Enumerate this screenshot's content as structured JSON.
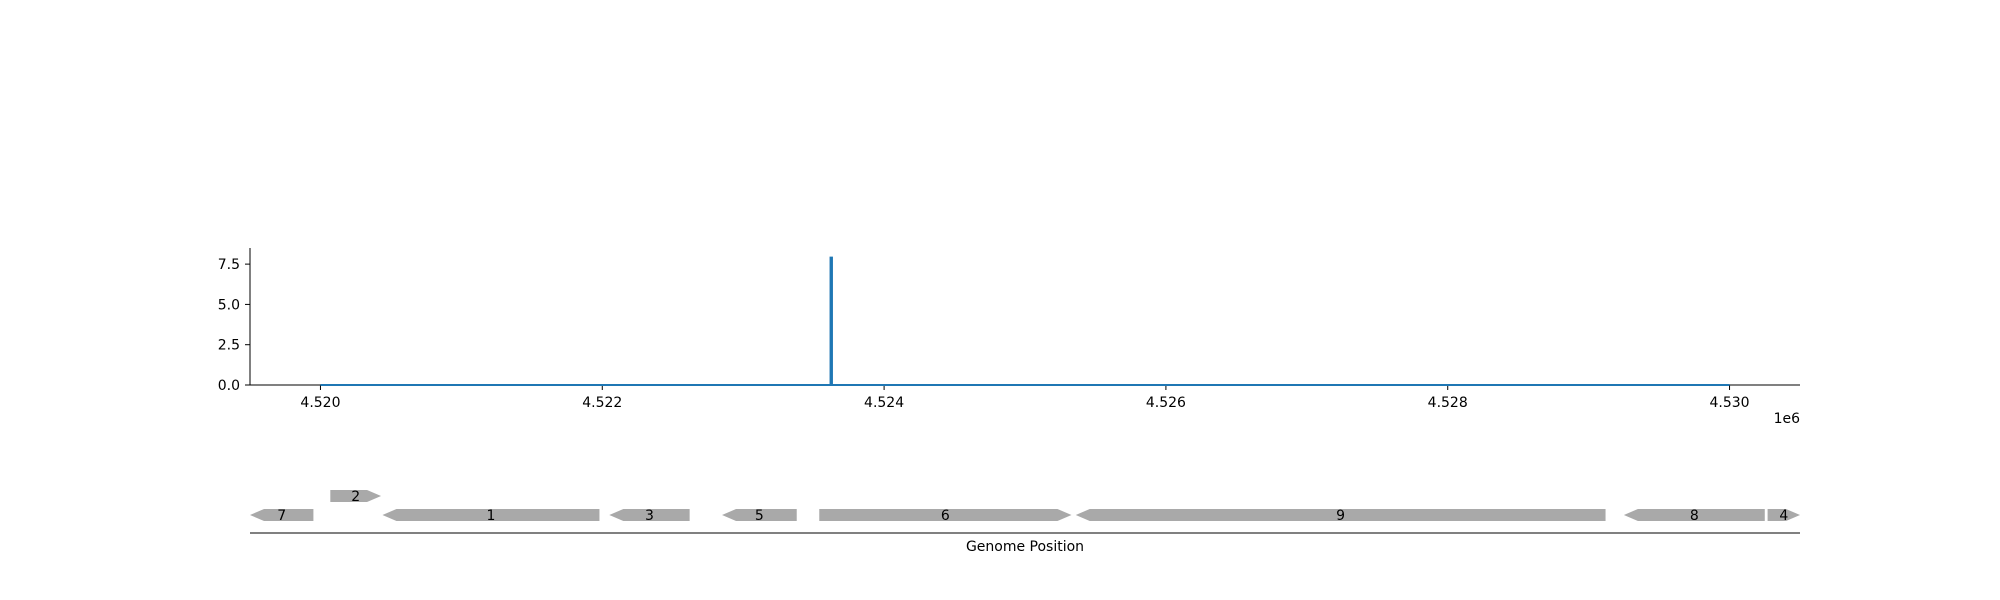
{
  "chart_data": [
    {
      "type": "line",
      "title": "",
      "xlabel": "",
      "ylabel": "",
      "x_offset_label": "1e6",
      "xlim": [
        4519500,
        4530500
      ],
      "ylim": [
        0,
        8.5
      ],
      "grid": false,
      "x_ticks": [
        4520000,
        4522000,
        4524000,
        4526000,
        4528000,
        4530000
      ],
      "x_tick_labels": [
        "4.520",
        "4.522",
        "4.524",
        "4.526",
        "4.528",
        "4.530"
      ],
      "y_ticks": [
        0,
        2.5,
        5,
        7.5
      ],
      "y_tick_labels": [
        "0.0",
        "2.5",
        "5.0",
        "7.5"
      ],
      "series": [
        {
          "color": "#1f77b4",
          "x": [
            4520000,
            4523620,
            4523620,
            4523630,
            4523630,
            4530000
          ],
          "y": [
            0,
            0,
            7.9,
            7.9,
            0,
            0
          ]
        }
      ]
    },
    {
      "type": "gene_map",
      "xlabel": "Genome Position",
      "xlim": [
        4519500,
        4530500
      ],
      "gene_color": "#a9a9a9",
      "genes": [
        {
          "label": "7",
          "start": 4519500,
          "end": 4519950,
          "strand": "-",
          "row": 0
        },
        {
          "label": "2",
          "start": 4520070,
          "end": 4520430,
          "strand": "+",
          "row": 1
        },
        {
          "label": "1",
          "start": 4520440,
          "end": 4521980,
          "strand": "-",
          "row": 0
        },
        {
          "label": "3",
          "start": 4522050,
          "end": 4522620,
          "strand": "-",
          "row": 0
        },
        {
          "label": "5",
          "start": 4522850,
          "end": 4523380,
          "strand": "-",
          "row": 0
        },
        {
          "label": "6",
          "start": 4523540,
          "end": 4525330,
          "strand": "+",
          "row": 0
        },
        {
          "label": "9",
          "start": 4525360,
          "end": 4529120,
          "strand": "-",
          "row": 0
        },
        {
          "label": "8",
          "start": 4529250,
          "end": 4530250,
          "strand": "-",
          "row": 0
        },
        {
          "label": "4",
          "start": 4530270,
          "end": 4530500,
          "strand": "+",
          "row": 0
        }
      ]
    }
  ]
}
